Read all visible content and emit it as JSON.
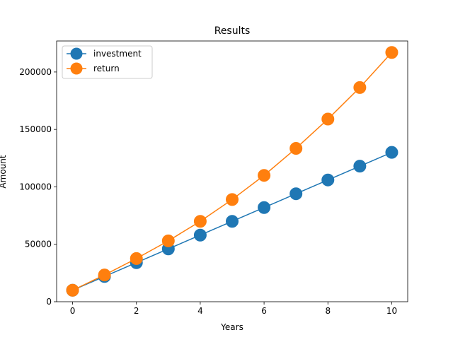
{
  "chart_data": {
    "type": "line",
    "title": "Results",
    "xlabel": "Years",
    "ylabel": "Amount",
    "xlim": [
      -0.5,
      10.5
    ],
    "ylim": [
      0,
      227000
    ],
    "x": [
      0,
      1,
      2,
      3,
      4,
      5,
      6,
      7,
      8,
      9,
      10
    ],
    "xticks": [
      0,
      2,
      4,
      6,
      8,
      10
    ],
    "yticks": [
      0,
      50000,
      100000,
      150000,
      200000
    ],
    "grid": false,
    "legend_position": "top-left",
    "series": [
      {
        "name": "investment",
        "color": "#1f77b4",
        "values": [
          10000,
          22000,
          34000,
          46000,
          58000,
          70000,
          82000,
          94000,
          106000,
          118000,
          130000
        ]
      },
      {
        "name": "return",
        "color": "#ff7f0e",
        "values": [
          10000,
          23300,
          37600,
          53000,
          70000,
          89000,
          110000,
          133500,
          159000,
          186500,
          217000
        ]
      }
    ]
  }
}
